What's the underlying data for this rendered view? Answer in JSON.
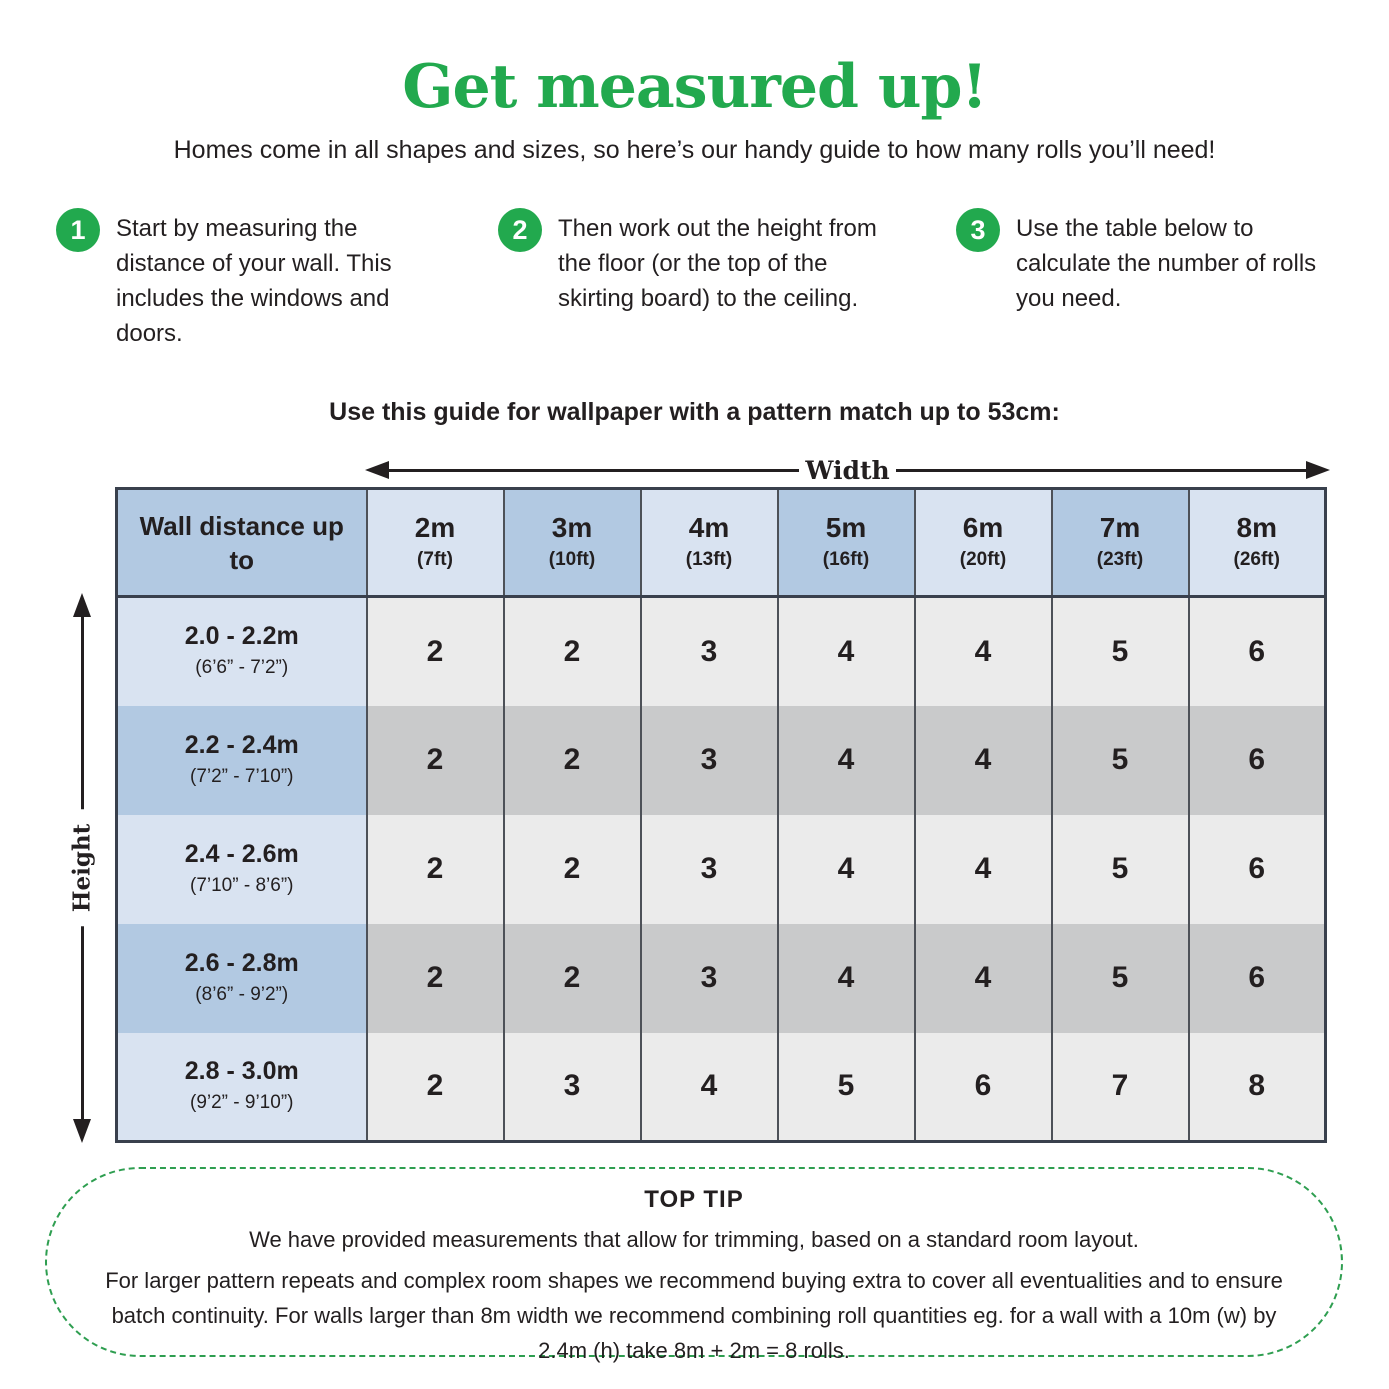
{
  "header": {
    "title": "Get measured up!",
    "subtitle": "Homes come in all shapes and sizes, so here’s our handy guide to how many rolls you’ll need!"
  },
  "steps": [
    {
      "number": "1",
      "text": "Start by measuring the distance of your wall. This includes the windows and doors."
    },
    {
      "number": "2",
      "text": "Then work out the height from the floor (or the top of the skirting board) to the ceiling."
    },
    {
      "number": "3",
      "text": "Use the table below to calculate the number of rolls you need."
    }
  ],
  "guide": {
    "heading": "Use this guide for wallpaper with a pattern match up to 53cm:",
    "width_label": "Width",
    "height_label": "Height"
  },
  "table": {
    "corner_label": "Wall distance up to",
    "columns": [
      {
        "m": "2m",
        "ft": "(7ft)"
      },
      {
        "m": "3m",
        "ft": "(10ft)"
      },
      {
        "m": "4m",
        "ft": "(13ft)"
      },
      {
        "m": "5m",
        "ft": "(16ft)"
      },
      {
        "m": "6m",
        "ft": "(20ft)"
      },
      {
        "m": "7m",
        "ft": "(23ft)"
      },
      {
        "m": "8m",
        "ft": "(26ft)"
      }
    ],
    "rows": [
      {
        "range": "2.0 - 2.2m",
        "imperial": "(6’6” - 7’2”)",
        "values": [
          2,
          2,
          3,
          4,
          4,
          5,
          6
        ]
      },
      {
        "range": "2.2 - 2.4m",
        "imperial": "(7’2” - 7’10”)",
        "values": [
          2,
          2,
          3,
          4,
          4,
          5,
          6
        ]
      },
      {
        "range": "2.4 - 2.6m",
        "imperial": "(7’10” - 8’6”)",
        "values": [
          2,
          2,
          3,
          4,
          4,
          5,
          6
        ]
      },
      {
        "range": "2.6 - 2.8m",
        "imperial": "(8’6” - 9’2”)",
        "values": [
          2,
          2,
          3,
          4,
          4,
          5,
          6
        ]
      },
      {
        "range": "2.8 - 3.0m",
        "imperial": "(9’2” - 9’10”)",
        "values": [
          2,
          3,
          4,
          5,
          6,
          7,
          8
        ]
      }
    ]
  },
  "tip": {
    "heading": "TOP TIP",
    "line1": "We have provided measurements that allow for trimming, based on a standard room layout.",
    "line2": "For larger pattern repeats and complex room shapes we recommend buying extra to cover all eventualities and to ensure batch continuity. For walls larger than 8m width we recommend combining roll quantities eg. for a wall with a 10m (w) by 2.4m (h) take 8m + 2m = 8 rolls."
  },
  "colors": {
    "accent_green": "#22a94e",
    "header_blue_dark": "#b2c9e2",
    "header_blue_light": "#d9e3f1",
    "data_gray_dark": "#c9cacb",
    "data_gray_light": "#ebebeb",
    "text_ink": "#231f20"
  }
}
